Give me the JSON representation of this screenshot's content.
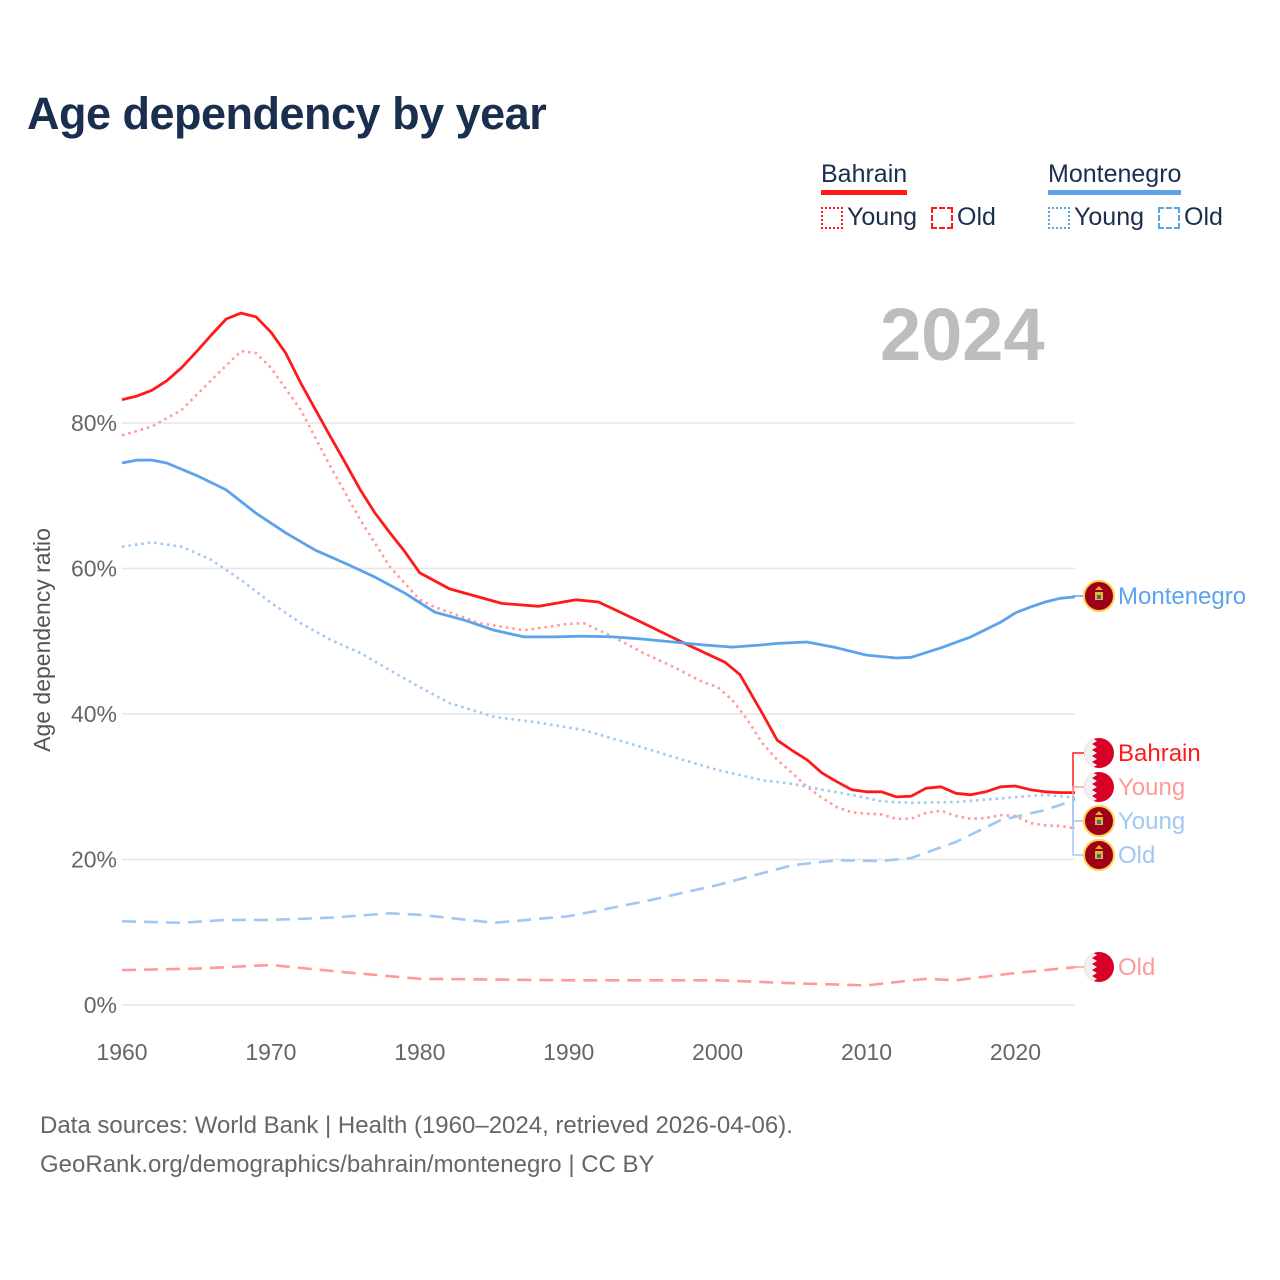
{
  "title": "Age dependency by year",
  "current_year": "2024",
  "legend": {
    "groups": [
      {
        "country": "Bahrain",
        "color": "#ff1a1a",
        "light": "#ff9a9a",
        "young": "Young",
        "old": "Old"
      },
      {
        "country": "Montenegro",
        "color": "#5ba3ea",
        "light": "#a0c8f2",
        "young": "Young",
        "old": "Old"
      }
    ]
  },
  "footer": {
    "line1": "Data sources: World Bank | Health (1960–2024, retrieved 2026-04-06).",
    "line2": "GeoRank.org/demographics/bahrain/montenegro | CC BY"
  },
  "chart_data": {
    "type": "line",
    "title": "Age dependency by year",
    "xlabel": "",
    "ylabel": "Age dependency ratio",
    "xlim": [
      1960,
      2024
    ],
    "ylim": [
      0,
      100
    ],
    "x_ticks": [
      "1960",
      "1970",
      "1980",
      "1990",
      "2000",
      "2010",
      "2020"
    ],
    "y_ticks": [
      "0%",
      "20%",
      "40%",
      "60%",
      "80%"
    ],
    "grid": true,
    "series": [
      {
        "name": "Bahrain",
        "label": "Bahrain",
        "style": "solid",
        "color": "#ff1a1a",
        "x": [
          1960,
          1961,
          1962,
          1963,
          1964,
          1965,
          1966,
          1967,
          1968,
          1969,
          1970,
          1971,
          1972,
          1973,
          1974,
          1975,
          1976,
          1977,
          1978,
          1979,
          1980,
          1982,
          1985.5,
          1988,
          1990.5,
          1992,
          1995,
          1998,
          2000.5,
          2001.5,
          2003,
          2004,
          2005,
          2006,
          2007,
          2008,
          2009,
          2010,
          2011,
          2012,
          2013,
          2014,
          2015,
          2016,
          2017,
          2018,
          2019,
          2020,
          2021,
          2022,
          2023,
          2024
        ],
        "values": [
          83.2,
          83.7,
          84.5,
          85.8,
          87.6,
          89.8,
          92.1,
          94.3,
          95.1,
          94.6,
          92.5,
          89.6,
          85.5,
          81.8,
          78.1,
          74.5,
          70.8,
          67.6,
          64.9,
          62.3,
          59.4,
          57.2,
          55.2,
          54.8,
          55.7,
          55.4,
          52.5,
          49.5,
          47.1,
          45.4,
          40.1,
          36.4,
          35.0,
          33.7,
          31.9,
          30.7,
          29.6,
          29.3,
          29.3,
          28.6,
          28.7,
          29.8,
          30.0,
          29.1,
          28.9,
          29.3,
          30.0,
          30.1,
          29.6,
          29.3,
          29.2,
          29.2
        ]
      },
      {
        "name": "Bahrain Young",
        "label": "Young",
        "style": "dotted",
        "color": "#ff9a9a",
        "x": [
          1960,
          1962,
          1964,
          1966,
          1968,
          1969,
          1970,
          1972,
          1974,
          1976,
          1978,
          1980,
          1981,
          1984,
          1987,
          1990,
          1991,
          1993,
          1995,
          1997,
          1999,
          2000,
          2001,
          2002,
          2003,
          2004,
          2005,
          2006,
          2007,
          2008,
          2009,
          2010,
          2011,
          2012,
          2013,
          2014,
          2015,
          2016,
          2017,
          2018,
          2019,
          2020,
          2021,
          2022,
          2023,
          2024
        ],
        "values": [
          78.3,
          79.5,
          81.8,
          85.9,
          89.9,
          89.6,
          87.6,
          81.8,
          74.0,
          66.7,
          60.2,
          55.7,
          54.7,
          52.5,
          51.5,
          52.4,
          52.5,
          50.6,
          48.4,
          46.5,
          44.4,
          43.7,
          41.9,
          39.2,
          36.0,
          33.7,
          31.9,
          30.0,
          28.5,
          27.2,
          26.5,
          26.3,
          26.2,
          25.6,
          25.6,
          26.4,
          26.7,
          26.0,
          25.6,
          25.7,
          26.1,
          26.0,
          25.0,
          24.7,
          24.6,
          24.3
        ]
      },
      {
        "name": "Bahrain Old",
        "label": "Old",
        "style": "dashed",
        "color": "#ff9a9a",
        "x": [
          1960,
          1965,
          1970,
          1975,
          1980,
          1990,
          2000,
          2005,
          2010,
          2014,
          2016,
          2020,
          2024
        ],
        "values": [
          4.8,
          5.0,
          5.5,
          4.5,
          3.6,
          3.4,
          3.4,
          3.0,
          2.7,
          3.6,
          3.4,
          4.4,
          5.2
        ]
      },
      {
        "name": "Montenegro",
        "label": "Montenegro",
        "style": "solid",
        "color": "#5ba3ea",
        "x": [
          1960,
          1961,
          1962,
          1963,
          1965,
          1967,
          1969,
          1971,
          1973,
          1975,
          1977,
          1979,
          1980,
          1981,
          1983,
          1985,
          1987,
          1989,
          1991,
          1993,
          1995,
          1997,
          1999,
          2001,
          2003,
          2004,
          2006,
          2008,
          2010,
          2012,
          2013,
          2015,
          2017,
          2019,
          2020,
          2021,
          2022,
          2023,
          2024
        ],
        "values": [
          74.5,
          74.9,
          74.9,
          74.5,
          72.8,
          70.8,
          67.6,
          64.9,
          62.5,
          60.7,
          58.8,
          56.6,
          55.3,
          54.0,
          52.9,
          51.5,
          50.6,
          50.6,
          50.7,
          50.6,
          50.3,
          49.9,
          49.5,
          49.2,
          49.5,
          49.7,
          49.9,
          49.1,
          48.1,
          47.7,
          47.8,
          49.1,
          50.6,
          52.6,
          53.9,
          54.7,
          55.4,
          55.9,
          56.1
        ]
      },
      {
        "name": "Montenegro Young",
        "label": "Young",
        "style": "dotted",
        "color": "#a0c8f2",
        "x": [
          1960,
          1962,
          1964,
          1966,
          1968,
          1970,
          1972,
          1974,
          1976,
          1978,
          1980,
          1982,
          1985,
          1988,
          1991,
          1994,
          1997,
          2000,
          2003,
          2005,
          2007,
          2009,
          2011,
          2013,
          2016,
          2019,
          2022,
          2024
        ],
        "values": [
          63.0,
          63.6,
          63.0,
          61.2,
          58.4,
          55.3,
          52.5,
          50.2,
          48.4,
          46.0,
          43.7,
          41.5,
          39.6,
          38.8,
          37.8,
          36.0,
          34.1,
          32.3,
          30.9,
          30.4,
          29.6,
          28.9,
          28.0,
          27.8,
          27.9,
          28.4,
          28.9,
          28.5
        ]
      },
      {
        "name": "Montenegro Old",
        "label": "Old",
        "style": "dashed",
        "color": "#a0c8f2",
        "x": [
          1960,
          1964,
          1967,
          1970,
          1974,
          1978,
          1980,
          1985,
          1990,
          1995,
          2000,
          2005,
          2008,
          2011,
          2013,
          2016,
          2019,
          2022,
          2024
        ],
        "values": [
          11.5,
          11.3,
          11.7,
          11.7,
          12.0,
          12.6,
          12.4,
          11.3,
          12.2,
          14.2,
          16.5,
          19.2,
          19.9,
          19.8,
          20.2,
          22.4,
          25.4,
          26.8,
          28.2
        ]
      }
    ]
  }
}
